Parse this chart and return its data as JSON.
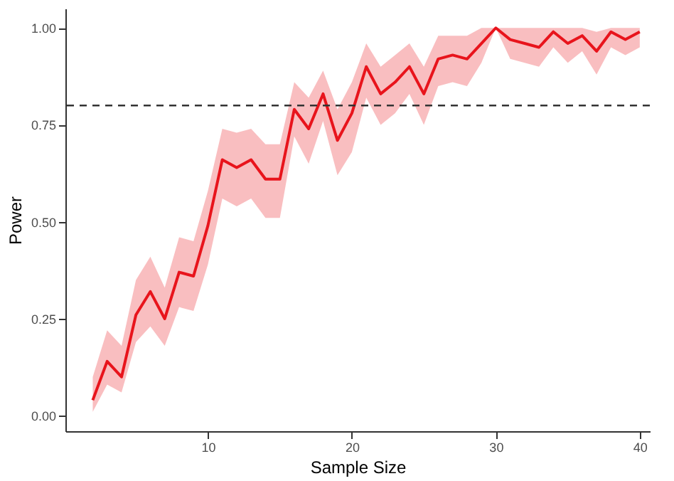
{
  "chart_data": {
    "type": "line",
    "xlabel": "Sample Size",
    "ylabel": "Power",
    "x": [
      2,
      3,
      4,
      5,
      6,
      7,
      8,
      9,
      10,
      11,
      12,
      13,
      14,
      15,
      16,
      17,
      18,
      19,
      20,
      21,
      22,
      23,
      24,
      25,
      26,
      27,
      28,
      29,
      30,
      31,
      32,
      33,
      34,
      35,
      36,
      37,
      38,
      39,
      40
    ],
    "series": [
      {
        "color": "#e8141c",
        "values": [
          0.04,
          0.14,
          0.1,
          0.26,
          0.32,
          0.25,
          0.37,
          0.36,
          0.49,
          0.66,
          0.64,
          0.66,
          0.61,
          0.61,
          0.79,
          0.74,
          0.83,
          0.71,
          0.78,
          0.9,
          0.83,
          0.86,
          0.9,
          0.83,
          0.92,
          0.93,
          0.92,
          0.96,
          1.0,
          0.97,
          0.96,
          0.95,
          0.99,
          0.96,
          0.98,
          0.94,
          0.99,
          0.97,
          0.99
        ],
        "lower": [
          0.01,
          0.08,
          0.06,
          0.19,
          0.23,
          0.18,
          0.28,
          0.27,
          0.39,
          0.56,
          0.54,
          0.56,
          0.51,
          0.51,
          0.72,
          0.65,
          0.76,
          0.62,
          0.68,
          0.82,
          0.75,
          0.78,
          0.83,
          0.75,
          0.85,
          0.86,
          0.85,
          0.91,
          1.0,
          0.92,
          0.91,
          0.9,
          0.95,
          0.91,
          0.94,
          0.88,
          0.95,
          0.93,
          0.95
        ],
        "upper": [
          0.1,
          0.22,
          0.18,
          0.35,
          0.41,
          0.33,
          0.46,
          0.45,
          0.58,
          0.74,
          0.73,
          0.74,
          0.7,
          0.7,
          0.86,
          0.82,
          0.89,
          0.79,
          0.86,
          0.96,
          0.9,
          0.93,
          0.96,
          0.9,
          0.98,
          0.98,
          0.98,
          1.0,
          1.0,
          1.0,
          1.0,
          1.0,
          1.0,
          1.0,
          1.0,
          0.99,
          1.0,
          1.0,
          1.0
        ]
      }
    ],
    "xlim": [
      0.1,
      40.7
    ],
    "xticks": [
      10,
      20,
      30,
      40
    ],
    "ylim": [
      -0.04,
      1.05
    ],
    "yticks": [
      {
        "value": 0,
        "label": "0.00"
      },
      {
        "value": 0.25,
        "label": "0.25"
      },
      {
        "value": 0.5,
        "label": "0.50"
      },
      {
        "value": 0.75,
        "label": "0.75"
      },
      {
        "value": 1,
        "label": "1.00"
      }
    ],
    "ref_lines": [
      {
        "axis": "y",
        "value": 0.8,
        "color": "#333333",
        "line_style": "dashed"
      }
    ],
    "grid": false,
    "line_style": "solid"
  }
}
